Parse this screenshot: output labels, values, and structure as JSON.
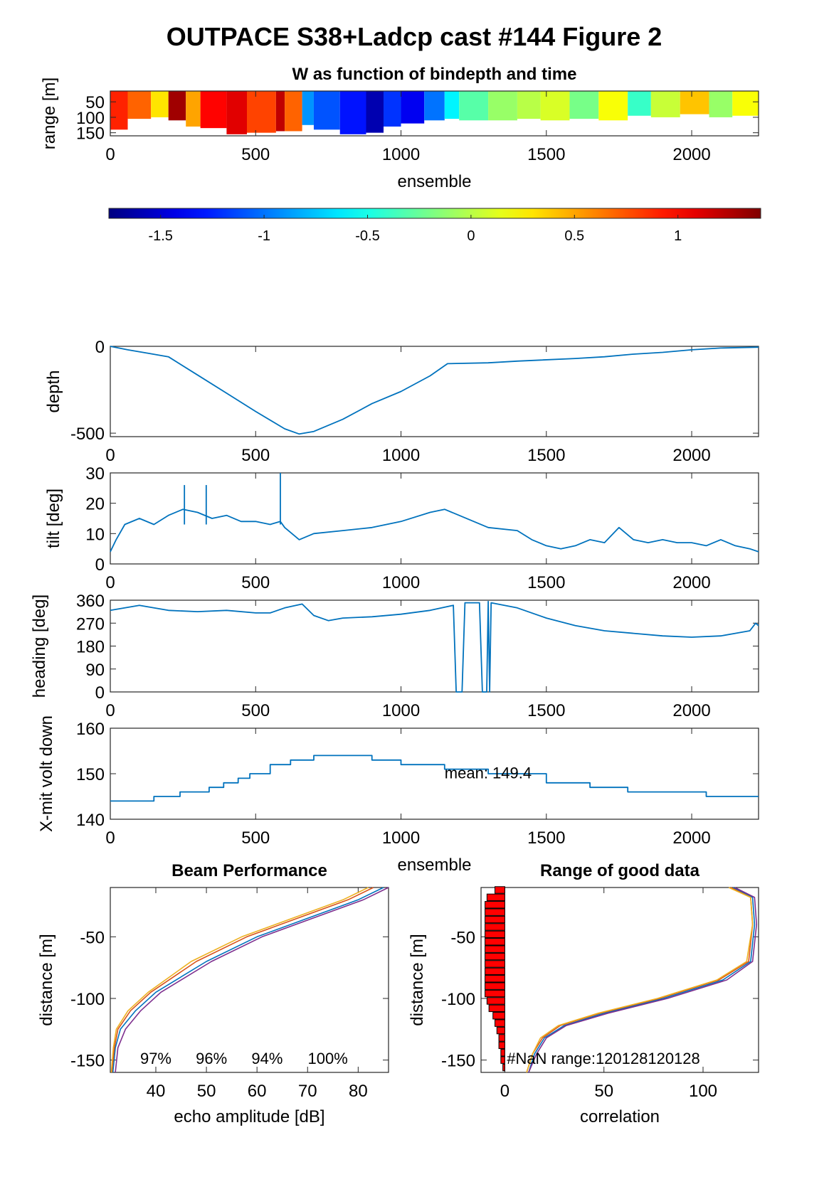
{
  "figure_title": "OUTPACE S38+Ladcp cast #144 Figure 2",
  "colors": {
    "line": "#0072bd",
    "nan_bar": "#ff0000",
    "axis": "#262626"
  },
  "chart_data": [
    {
      "id": "w",
      "type": "heatmap",
      "title": "W as function of bindepth and time",
      "xlabel": "ensemble",
      "ylabel": "range [m]",
      "xlim": [
        0,
        2230
      ],
      "ylim": [
        160,
        15
      ],
      "xticks": [
        0,
        500,
        1000,
        1500,
        2000
      ],
      "yticks": [
        50,
        100,
        150
      ],
      "segments": [
        {
          "x": [
            0,
            60
          ],
          "w": 0.9,
          "bottom": 140
        },
        {
          "x": [
            60,
            140
          ],
          "w": 0.7,
          "bottom": 105
        },
        {
          "x": [
            140,
            200
          ],
          "w": 0.3,
          "bottom": 100
        },
        {
          "x": [
            200,
            260
          ],
          "w": 1.3,
          "bottom": 110
        },
        {
          "x": [
            260,
            310
          ],
          "w": 0.5,
          "bottom": 130
        },
        {
          "x": [
            310,
            400
          ],
          "w": 1.0,
          "bottom": 135
        },
        {
          "x": [
            400,
            470
          ],
          "w": 1.1,
          "bottom": 155
        },
        {
          "x": [
            470,
            570
          ],
          "w": 0.8,
          "bottom": 150
        },
        {
          "x": [
            570,
            600
          ],
          "w": 1.2,
          "bottom": 145
        },
        {
          "x": [
            600,
            660
          ],
          "w": 0.7,
          "bottom": 145
        },
        {
          "x": [
            660,
            700
          ],
          "w": -0.9,
          "bottom": 125
        },
        {
          "x": [
            700,
            790
          ],
          "w": -1.1,
          "bottom": 140
        },
        {
          "x": [
            790,
            880
          ],
          "w": -1.3,
          "bottom": 155
        },
        {
          "x": [
            880,
            940
          ],
          "w": -1.6,
          "bottom": 150
        },
        {
          "x": [
            940,
            1000
          ],
          "w": -1.2,
          "bottom": 130
        },
        {
          "x": [
            1000,
            1080
          ],
          "w": -1.4,
          "bottom": 120
        },
        {
          "x": [
            1080,
            1150
          ],
          "w": -1.0,
          "bottom": 110
        },
        {
          "x": [
            1150,
            1200
          ],
          "w": -0.6,
          "bottom": 105
        },
        {
          "x": [
            1200,
            1300
          ],
          "w": -0.3,
          "bottom": 110
        },
        {
          "x": [
            1300,
            1400
          ],
          "w": -0.1,
          "bottom": 110
        },
        {
          "x": [
            1400,
            1480
          ],
          "w": 0.0,
          "bottom": 105
        },
        {
          "x": [
            1480,
            1580
          ],
          "w": 0.1,
          "bottom": 110
        },
        {
          "x": [
            1580,
            1680
          ],
          "w": -0.2,
          "bottom": 105
        },
        {
          "x": [
            1680,
            1780
          ],
          "w": 0.2,
          "bottom": 110
        },
        {
          "x": [
            1780,
            1860
          ],
          "w": -0.4,
          "bottom": 95
        },
        {
          "x": [
            1860,
            1960
          ],
          "w": 0.05,
          "bottom": 100
        },
        {
          "x": [
            1960,
            2060
          ],
          "w": 0.4,
          "bottom": 90
        },
        {
          "x": [
            2060,
            2140
          ],
          "w": -0.1,
          "bottom": 100
        },
        {
          "x": [
            2140,
            2230
          ],
          "w": 0.2,
          "bottom": 95
        }
      ]
    },
    {
      "id": "colorbar",
      "type": "colorbar",
      "clim": [
        -1.75,
        1.4
      ],
      "ticks": [
        -1.5,
        -1,
        -0.5,
        0,
        0.5,
        1
      ]
    },
    {
      "id": "depth",
      "type": "line",
      "xlabel": "",
      "ylabel": "depth",
      "xlim": [
        0,
        2230
      ],
      "ylim": [
        -520,
        0
      ],
      "xticks": [
        0,
        500,
        1000,
        1500,
        2000
      ],
      "yticks": [
        0,
        -500
      ],
      "x": [
        0,
        60,
        130,
        200,
        300,
        400,
        500,
        600,
        650,
        700,
        800,
        900,
        1000,
        1100,
        1160,
        1300,
        1400,
        1600,
        1700,
        1800,
        1900,
        2000,
        2100,
        2230
      ],
      "y": [
        0,
        -20,
        -40,
        -60,
        -165,
        -270,
        -375,
        -475,
        -505,
        -490,
        -420,
        -330,
        -260,
        -170,
        -100,
        -95,
        -85,
        -70,
        -60,
        -45,
        -35,
        -20,
        -10,
        -5
      ]
    },
    {
      "id": "tilt",
      "type": "line",
      "xlabel": "",
      "ylabel": "tilt [deg]",
      "xlim": [
        0,
        2230
      ],
      "ylim": [
        0,
        30
      ],
      "xticks": [
        0,
        500,
        1000,
        1500,
        2000
      ],
      "yticks": [
        0,
        10,
        20,
        30
      ],
      "x": [
        0,
        20,
        50,
        100,
        150,
        200,
        250,
        300,
        350,
        400,
        450,
        500,
        550,
        585,
        600,
        650,
        700,
        800,
        900,
        1000,
        1100,
        1150,
        1200,
        1300,
        1400,
        1450,
        1500,
        1550,
        1600,
        1650,
        1700,
        1750,
        1800,
        1850,
        1900,
        1950,
        2000,
        2050,
        2100,
        2150,
        2200,
        2230
      ],
      "y": [
        4,
        8,
        13,
        15,
        13,
        16,
        18,
        17,
        15,
        16,
        14,
        14,
        13,
        14,
        12,
        8,
        10,
        11,
        12,
        14,
        17,
        18,
        16,
        12,
        11,
        8,
        6,
        5,
        6,
        8,
        7,
        12,
        8,
        7,
        8,
        7,
        7,
        6,
        8,
        6,
        5,
        4
      ],
      "spikes": [
        {
          "x": 585,
          "y": 30
        },
        {
          "x": 255,
          "y": 26
        },
        {
          "x": 330,
          "y": 26
        }
      ]
    },
    {
      "id": "heading",
      "type": "line",
      "xlabel": "",
      "ylabel": "heading [deg]",
      "xlim": [
        0,
        2230
      ],
      "ylim": [
        0,
        360
      ],
      "xticks": [
        0,
        500,
        1000,
        1500,
        2000
      ],
      "yticks": [
        0,
        90,
        180,
        270,
        360
      ],
      "x": [
        0,
        50,
        100,
        200,
        300,
        400,
        500,
        550,
        600,
        660,
        700,
        750,
        800,
        900,
        1000,
        1100,
        1180,
        1190,
        1210,
        1220,
        1270,
        1280,
        1295,
        1300,
        1305,
        1310,
        1400,
        1500,
        1600,
        1700,
        1800,
        1900,
        2000,
        2100,
        2150,
        2200,
        2220,
        2230
      ],
      "y": [
        320,
        330,
        340,
        320,
        315,
        320,
        310,
        310,
        330,
        345,
        300,
        280,
        290,
        295,
        305,
        320,
        340,
        0,
        0,
        350,
        350,
        0,
        0,
        355,
        0,
        350,
        330,
        290,
        260,
        240,
        230,
        220,
        215,
        220,
        230,
        240,
        270,
        260
      ]
    },
    {
      "id": "xmit",
      "type": "line",
      "xlabel": "ensemble",
      "ylabel": "X-mit volt down",
      "xlim": [
        0,
        2230
      ],
      "ylim": [
        140,
        160
      ],
      "xticks": [
        0,
        500,
        1000,
        1500,
        2000
      ],
      "yticks": [
        140,
        150,
        160
      ],
      "annotation": "mean: 149.4",
      "x": [
        0,
        150,
        150,
        240,
        240,
        340,
        340,
        390,
        390,
        440,
        440,
        480,
        480,
        550,
        550,
        620,
        620,
        700,
        700,
        720,
        720,
        800,
        800,
        900,
        900,
        1000,
        1000,
        1150,
        1150,
        1300,
        1300,
        1500,
        1500,
        1650,
        1650,
        1780,
        1780,
        2050,
        2050,
        2230
      ],
      "y": [
        144,
        144,
        145,
        145,
        146,
        146,
        147,
        147,
        148,
        148,
        149,
        149,
        150,
        150,
        152,
        152,
        153,
        153,
        154,
        154,
        154,
        154,
        154,
        154,
        153,
        153,
        152,
        152,
        151,
        151,
        150,
        150,
        148,
        148,
        147,
        147,
        146,
        146,
        145,
        145
      ]
    },
    {
      "id": "beam",
      "type": "line",
      "title": "Beam Performance",
      "xlabel": "echo amplitude [dB]",
      "ylabel": "distance [m]",
      "xlim": [
        31,
        86
      ],
      "ylim": [
        -160,
        -10
      ],
      "xticks": [
        40,
        50,
        60,
        70,
        80
      ],
      "yticks": [
        -50,
        -100,
        -150
      ],
      "labels": [
        "97%",
        "96%",
        "94%",
        "100%"
      ],
      "series": [
        {
          "x": [
            85,
            80,
            70,
            60,
            50,
            40,
            36,
            33,
            32,
            31.5
          ],
          "y": [
            -10,
            -20,
            -35,
            -50,
            -70,
            -95,
            -110,
            -125,
            -140,
            -160
          ],
          "color": "#0072bd"
        },
        {
          "x": [
            83,
            78,
            68,
            58,
            48,
            39,
            35,
            32.5,
            31.8,
            31.3
          ],
          "y": [
            -10,
            -20,
            -35,
            -50,
            -70,
            -95,
            -110,
            -125,
            -140,
            -160
          ],
          "color": "#d95319"
        },
        {
          "x": [
            82,
            77,
            67,
            57,
            47,
            38.5,
            34.5,
            32.2,
            31.6,
            31.2
          ],
          "y": [
            -10,
            -20,
            -35,
            -50,
            -70,
            -95,
            -110,
            -125,
            -140,
            -160
          ],
          "color": "#edb120"
        },
        {
          "x": [
            86,
            81,
            71,
            61,
            51,
            41,
            37,
            34,
            32.5,
            32
          ],
          "y": [
            -10,
            -20,
            -35,
            -50,
            -70,
            -95,
            -110,
            -125,
            -140,
            -160
          ],
          "color": "#7e2f8e"
        }
      ]
    },
    {
      "id": "range",
      "type": "line",
      "title": "Range of good data",
      "xlabel": "correlation",
      "ylabel": "distance [m]",
      "xlim": [
        -12,
        128
      ],
      "ylim": [
        -160,
        -10
      ],
      "xticks": [
        0,
        50,
        100
      ],
      "yticks": [
        -50,
        -100,
        -150
      ],
      "annotation": "#NaN range:120128120128",
      "nan_bars": {
        "y": [
          -12,
          -18,
          -24,
          -30,
          -36,
          -42,
          -48,
          -54,
          -60,
          -66,
          -72,
          -78,
          -84,
          -90,
          -96,
          -102,
          -108,
          -114,
          -120,
          -126,
          -132,
          -138,
          -144,
          -150,
          -156
        ],
        "x": [
          -5,
          -9,
          -10,
          -10,
          -10,
          -10,
          -10,
          -10,
          -10,
          -10,
          -10,
          -10,
          -10,
          -10,
          -10,
          -9,
          -8,
          -6,
          -5,
          -4,
          -3,
          -3,
          -2,
          -2,
          -1
        ]
      },
      "series": [
        {
          "x": [
            115,
            125,
            126,
            124,
            110,
            80,
            50,
            30,
            20,
            15,
            12
          ],
          "y": [
            -10,
            -18,
            -40,
            -70,
            -85,
            -100,
            -112,
            -122,
            -132,
            -145,
            -160
          ],
          "color": "#0072bd"
        },
        {
          "x": [
            114,
            124,
            125,
            123,
            108,
            78,
            48,
            28,
            19,
            14,
            11
          ],
          "y": [
            -10,
            -18,
            -40,
            -70,
            -85,
            -100,
            -112,
            -122,
            -132,
            -145,
            -160
          ],
          "color": "#d95319"
        },
        {
          "x": [
            113,
            124,
            125,
            122,
            107,
            77,
            47,
            27,
            18,
            14,
            11
          ],
          "y": [
            -10,
            -18,
            -40,
            -70,
            -85,
            -100,
            -112,
            -122,
            -132,
            -145,
            -160
          ],
          "color": "#edb120"
        },
        {
          "x": [
            116,
            126,
            127,
            125,
            112,
            82,
            52,
            31,
            21,
            16,
            12
          ],
          "y": [
            -10,
            -18,
            -40,
            -70,
            -85,
            -100,
            -112,
            -122,
            -132,
            -145,
            -160
          ],
          "color": "#7e2f8e"
        }
      ]
    }
  ]
}
